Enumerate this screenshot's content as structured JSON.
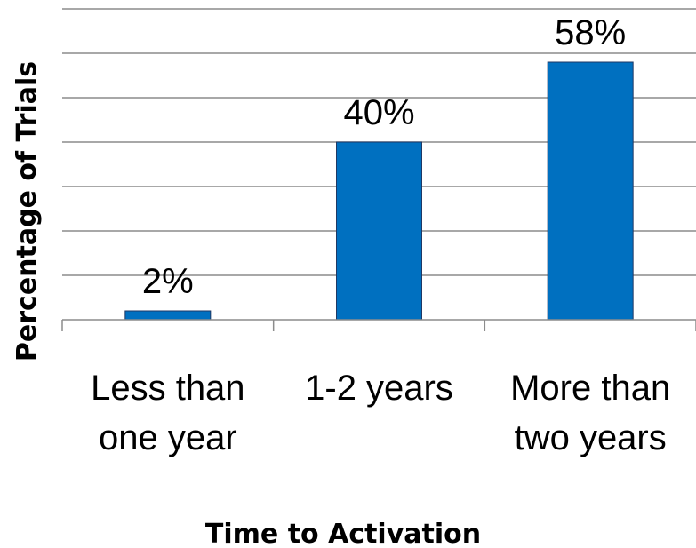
{
  "chart_data": {
    "type": "bar",
    "categories": [
      [
        "Less than",
        "one year"
      ],
      [
        "1-2 years"
      ],
      [
        "More than",
        "two years"
      ]
    ],
    "values": [
      2,
      40,
      58
    ],
    "value_labels": [
      "2%",
      "40%",
      "58%"
    ],
    "xlabel": "Time to Activation",
    "ylabel": "Percentage of Trials",
    "ylim": [
      0,
      70
    ],
    "grid": true,
    "legend": "none",
    "colors": {
      "bar": "#0070C0",
      "bar_edge": "#1F3864",
      "grid": "#8C8C8C",
      "axis": "#8C8C8C"
    }
  }
}
